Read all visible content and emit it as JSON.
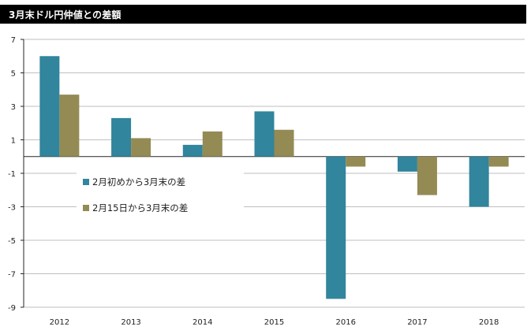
{
  "title": "3月末ドル円仲値との差額",
  "colors": {
    "series1": "#31859C",
    "series2": "#948A54",
    "grid": "#BFBFBF",
    "axis": "#262626",
    "title_bg": "#000000"
  },
  "chart_data": {
    "type": "bar",
    "title": "3月末ドル円仲値との差額",
    "categories": [
      "2012",
      "2013",
      "2014",
      "2015",
      "2016",
      "2017",
      "2018"
    ],
    "series": [
      {
        "name": "2月初めから3月末の差",
        "values": [
          6.0,
          2.3,
          0.7,
          2.7,
          -8.5,
          -0.9,
          -3.0
        ]
      },
      {
        "name": "2月15日から3月末の差",
        "values": [
          3.7,
          1.1,
          1.5,
          1.6,
          -0.6,
          -2.3,
          -0.6
        ]
      }
    ],
    "yticks": [
      7,
      5,
      3,
      1,
      -1,
      -3,
      -5,
      -7,
      -9
    ],
    "ylim": [
      -9,
      7
    ],
    "grid": true,
    "legend_position": "left-center",
    "xlabel": "",
    "ylabel": ""
  }
}
